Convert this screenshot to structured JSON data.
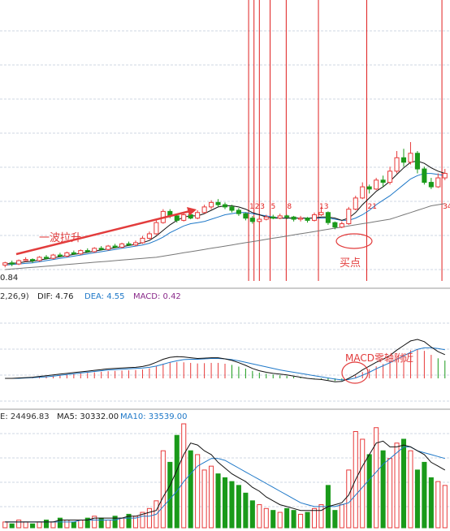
{
  "colors": {
    "up": "#e83a3a",
    "down": "#1a9a1a",
    "grid": "#cfd7e3",
    "vline": "#e01f1f",
    "ma_black": "#111111",
    "ma_blue": "#1e78c8",
    "ma_gray": "#777777",
    "dea_purple": "#8a2a8a",
    "annot": "#e23c3c"
  },
  "price_panel": {
    "price_label": "0.84",
    "vline_labels": [
      "1",
      "2",
      "3",
      "5",
      "8",
      "13",
      "21",
      "34"
    ],
    "annotation_wave": "一波拉升",
    "annotation_buy": "买点"
  },
  "macd_panel": {
    "header_prefix": "2,26,9)",
    "dif_text": "DIF: 4.76",
    "dea_text": "DEA: 4.55",
    "macd_text": "MACD: 0.42",
    "annotation": "MACD零轴附近"
  },
  "volume_panel": {
    "vol_text": "E: 24496.83",
    "ma5_text": "MA5: 30332.00",
    "ma10_text": "MA10: 33539.00"
  },
  "chart_data": {
    "type": "candlestick",
    "candles": [
      {
        "o": 8,
        "c": 10,
        "h": 11,
        "l": 6
      },
      {
        "o": 10,
        "c": 9,
        "h": 12,
        "l": 7
      },
      {
        "o": 9,
        "c": 12,
        "h": 13,
        "l": 8
      },
      {
        "o": 12,
        "c": 13,
        "h": 15,
        "l": 11
      },
      {
        "o": 13,
        "c": 12,
        "h": 14,
        "l": 10
      },
      {
        "o": 12,
        "c": 15,
        "h": 16,
        "l": 11
      },
      {
        "o": 15,
        "c": 14,
        "h": 17,
        "l": 13
      },
      {
        "o": 14,
        "c": 17,
        "h": 18,
        "l": 13
      },
      {
        "o": 17,
        "c": 16,
        "h": 19,
        "l": 15
      },
      {
        "o": 16,
        "c": 19,
        "h": 20,
        "l": 15
      },
      {
        "o": 19,
        "c": 18,
        "h": 21,
        "l": 17
      },
      {
        "o": 18,
        "c": 21,
        "h": 22,
        "l": 17
      },
      {
        "o": 21,
        "c": 20,
        "h": 23,
        "l": 19
      },
      {
        "o": 20,
        "c": 23,
        "h": 24,
        "l": 19
      },
      {
        "o": 23,
        "c": 22,
        "h": 25,
        "l": 21
      },
      {
        "o": 22,
        "c": 25,
        "h": 26,
        "l": 21
      },
      {
        "o": 25,
        "c": 24,
        "h": 27,
        "l": 23
      },
      {
        "o": 24,
        "c": 27,
        "h": 28,
        "l": 23
      },
      {
        "o": 27,
        "c": 26,
        "h": 29,
        "l": 25
      },
      {
        "o": 26,
        "c": 28,
        "h": 30,
        "l": 25
      },
      {
        "o": 28,
        "c": 32,
        "h": 34,
        "l": 27
      },
      {
        "o": 32,
        "c": 36,
        "h": 38,
        "l": 31
      },
      {
        "o": 36,
        "c": 46,
        "h": 48,
        "l": 35
      },
      {
        "o": 46,
        "c": 56,
        "h": 58,
        "l": 45
      },
      {
        "o": 56,
        "c": 52,
        "h": 58,
        "l": 50
      },
      {
        "o": 52,
        "c": 48,
        "h": 54,
        "l": 46
      },
      {
        "o": 48,
        "c": 53,
        "h": 55,
        "l": 47
      },
      {
        "o": 53,
        "c": 50,
        "h": 55,
        "l": 49
      },
      {
        "o": 50,
        "c": 55,
        "h": 57,
        "l": 49
      },
      {
        "o": 55,
        "c": 60,
        "h": 62,
        "l": 54
      },
      {
        "o": 60,
        "c": 64,
        "h": 66,
        "l": 58
      },
      {
        "o": 64,
        "c": 62,
        "h": 67,
        "l": 60
      },
      {
        "o": 62,
        "c": 60,
        "h": 64,
        "l": 58
      },
      {
        "o": 60,
        "c": 57,
        "h": 62,
        "l": 55
      },
      {
        "o": 57,
        "c": 54,
        "h": 59,
        "l": 52
      },
      {
        "o": 54,
        "c": 50,
        "h": 55,
        "l": 48
      },
      {
        "o": 50,
        "c": 47,
        "h": 52,
        "l": 45
      },
      {
        "o": 47,
        "c": 49,
        "h": 51,
        "l": 46
      },
      {
        "o": 49,
        "c": 51,
        "h": 53,
        "l": 48
      },
      {
        "o": 51,
        "c": 50,
        "h": 53,
        "l": 49
      },
      {
        "o": 50,
        "c": 52,
        "h": 54,
        "l": 49
      },
      {
        "o": 52,
        "c": 51,
        "h": 53,
        "l": 49
      },
      {
        "o": 51,
        "c": 49,
        "h": 52,
        "l": 47
      },
      {
        "o": 49,
        "c": 50,
        "h": 52,
        "l": 47
      },
      {
        "o": 50,
        "c": 48,
        "h": 51,
        "l": 46
      },
      {
        "o": 48,
        "c": 53,
        "h": 55,
        "l": 47
      },
      {
        "o": 53,
        "c": 55,
        "h": 60,
        "l": 52
      },
      {
        "o": 55,
        "c": 46,
        "h": 56,
        "l": 44
      },
      {
        "o": 46,
        "c": 42,
        "h": 47,
        "l": 40
      },
      {
        "o": 42,
        "c": 45,
        "h": 47,
        "l": 41
      },
      {
        "o": 45,
        "c": 58,
        "h": 60,
        "l": 44
      },
      {
        "o": 58,
        "c": 68,
        "h": 70,
        "l": 57
      },
      {
        "o": 68,
        "c": 78,
        "h": 82,
        "l": 67
      },
      {
        "o": 78,
        "c": 76,
        "h": 80,
        "l": 72
      },
      {
        "o": 76,
        "c": 84,
        "h": 86,
        "l": 75
      },
      {
        "o": 84,
        "c": 82,
        "h": 88,
        "l": 78
      },
      {
        "o": 82,
        "c": 92,
        "h": 96,
        "l": 80
      },
      {
        "o": 92,
        "c": 104,
        "h": 110,
        "l": 90
      },
      {
        "o": 104,
        "c": 100,
        "h": 112,
        "l": 96
      },
      {
        "o": 100,
        "c": 108,
        "h": 118,
        "l": 98
      },
      {
        "o": 108,
        "c": 94,
        "h": 110,
        "l": 90
      },
      {
        "o": 94,
        "c": 82,
        "h": 96,
        "l": 80
      },
      {
        "o": 82,
        "c": 78,
        "h": 86,
        "l": 76
      },
      {
        "o": 78,
        "c": 86,
        "h": 90,
        "l": 77
      },
      {
        "o": 86,
        "c": 90,
        "h": 94,
        "l": 84
      }
    ],
    "ma_black": [
      9,
      9.5,
      10,
      11,
      11.5,
      12.5,
      13.5,
      14.5,
      15.5,
      16.5,
      17.5,
      18.5,
      19.5,
      20.5,
      21.5,
      22.5,
      23.5,
      24.5,
      25.5,
      26.5,
      28,
      30,
      34,
      39,
      44,
      48,
      51,
      52,
      52,
      54,
      57,
      60,
      61,
      61,
      60,
      58,
      55,
      53,
      51,
      50,
      50,
      50,
      50,
      50,
      50,
      50,
      51,
      51,
      50,
      48,
      50,
      55,
      62,
      68,
      74,
      78,
      83,
      89,
      95,
      100,
      101,
      99,
      95,
      92,
      90
    ],
    "ma_blue": [
      8,
      8.5,
      9,
      9.5,
      10,
      11,
      12,
      13,
      14,
      15,
      16,
      17,
      18,
      19,
      20,
      21,
      22,
      23,
      24,
      25,
      26,
      27.5,
      30,
      33,
      37,
      40,
      43,
      45,
      46,
      47,
      49,
      51,
      53,
      54,
      55,
      55,
      54,
      53,
      52,
      51,
      50,
      50,
      50,
      50,
      50,
      50,
      50,
      50,
      49,
      48,
      48,
      50,
      53,
      57,
      62,
      66,
      70,
      75,
      80,
      85,
      88,
      90,
      90,
      89,
      88
    ],
    "ma_gray": [
      4,
      4.5,
      5,
      5.5,
      6,
      6.5,
      7,
      7.5,
      8,
      8.5,
      9,
      9.5,
      10,
      10.5,
      11,
      11.5,
      12,
      12.5,
      13,
      13.5,
      14,
      14.5,
      15,
      16,
      17,
      18,
      19,
      20,
      21,
      22,
      23,
      24,
      25,
      26,
      27,
      28,
      29,
      30,
      31,
      32,
      33,
      34,
      35,
      36,
      37,
      38,
      39,
      40,
      41,
      42,
      43,
      44,
      45,
      46,
      47,
      48,
      49,
      51,
      53,
      55,
      57,
      59,
      61,
      62,
      63
    ],
    "dif": [
      0,
      0,
      0.1,
      0.2,
      0.3,
      0.5,
      0.7,
      0.9,
      1.1,
      1.3,
      1.5,
      1.7,
      1.9,
      2.1,
      2.3,
      2.5,
      2.6,
      2.7,
      2.8,
      2.9,
      3.1,
      3.5,
      4.2,
      5.0,
      5.5,
      5.7,
      5.6,
      5.4,
      5.2,
      5.3,
      5.4,
      5.4,
      5.1,
      4.7,
      4.1,
      3.4,
      2.6,
      2.0,
      1.6,
      1.3,
      1.1,
      0.9,
      0.6,
      0.3,
      0.0,
      -0.2,
      -0.3,
      -0.6,
      -0.9,
      -0.8,
      0.0,
      1.0,
      2.2,
      3.2,
      4.2,
      5.0,
      6.0,
      7.4,
      8.6,
      9.8,
      10.2,
      9.6,
      8.2,
      7.0,
      6.2
    ],
    "dea": [
      0,
      0,
      0,
      0.1,
      0.2,
      0.3,
      0.4,
      0.6,
      0.8,
      1.0,
      1.2,
      1.4,
      1.6,
      1.8,
      2.0,
      2.2,
      2.3,
      2.4,
      2.5,
      2.6,
      2.7,
      2.9,
      3.2,
      3.7,
      4.2,
      4.6,
      4.9,
      5.0,
      5.0,
      5.1,
      5.2,
      5.2,
      5.1,
      4.9,
      4.6,
      4.2,
      3.8,
      3.4,
      3.0,
      2.6,
      2.2,
      1.9,
      1.6,
      1.3,
      1.0,
      0.7,
      0.4,
      0.1,
      -0.2,
      -0.4,
      -0.3,
      0.1,
      0.8,
      1.6,
      2.5,
      3.3,
      4.1,
      5.0,
      5.9,
      6.8,
      7.6,
      8.0,
      8.0,
      7.8,
      7.5
    ],
    "volume": [
      3,
      2,
      4,
      3,
      2,
      3,
      4,
      3,
      5,
      4,
      3,
      4,
      5,
      6,
      5,
      4,
      6,
      5,
      7,
      6,
      8,
      10,
      14,
      40,
      34,
      48,
      54,
      40,
      38,
      30,
      32,
      28,
      26,
      24,
      22,
      18,
      14,
      12,
      10,
      9,
      8,
      10,
      9,
      7,
      8,
      10,
      12,
      22,
      9,
      12,
      30,
      50,
      46,
      38,
      52,
      40,
      36,
      44,
      46,
      40,
      30,
      34,
      26,
      24,
      22
    ],
    "vol_ma5": [
      3,
      3,
      3,
      3,
      3,
      3,
      3,
      3,
      4,
      4,
      4,
      4,
      4,
      5,
      5,
      5,
      5,
      5,
      6,
      6,
      7,
      8,
      9,
      16,
      22,
      30,
      38,
      44,
      43,
      40,
      38,
      34,
      31,
      28,
      26,
      24,
      21,
      19,
      16,
      14,
      12,
      11,
      10,
      9,
      9,
      9,
      9,
      11,
      12,
      13,
      17,
      25,
      32,
      38,
      44,
      45,
      42,
      42,
      43,
      42,
      40,
      38,
      34,
      32,
      30
    ],
    "vol_ma10": [
      3,
      3,
      3,
      3,
      3,
      3,
      3,
      3,
      3,
      3,
      3,
      4,
      4,
      4,
      4,
      4,
      4,
      5,
      5,
      5,
      6,
      6,
      7,
      11,
      15,
      19,
      24,
      28,
      32,
      34,
      36,
      36,
      35,
      33,
      31,
      29,
      27,
      25,
      23,
      21,
      19,
      17,
      15,
      13,
      12,
      11,
      11,
      11,
      11,
      12,
      13,
      17,
      21,
      25,
      29,
      33,
      36,
      39,
      42,
      42,
      40,
      39,
      38,
      37,
      36
    ],
    "vertical_line_indices": [
      46,
      47,
      48,
      50,
      53,
      59,
      68,
      82
    ],
    "note": ""
  }
}
